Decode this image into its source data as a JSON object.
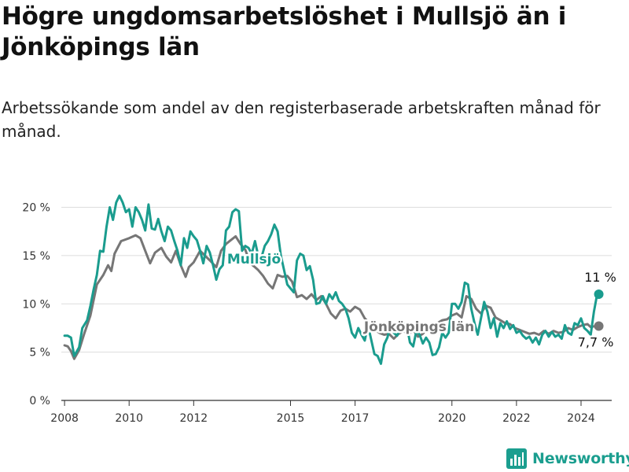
{
  "title": "Högre ungdomsarbetslöshet i Mullsjö än i Jönköpings län",
  "subtitle": "Arbetssökande som andel av den registerbaserade arbetskraften månad för månad.",
  "brand": {
    "name": "Newsworthy",
    "icon": "bar-chart-logo-icon"
  },
  "colors": {
    "mullsjo": "#1a9c8e",
    "lan": "#767676",
    "grid": "#dddddd",
    "axis": "#333333"
  },
  "chart_data": {
    "type": "line",
    "title": "Högre ungdomsarbetslöshet i Mullsjö än i Jönköpings län",
    "ylabel": "",
    "xlabel": "",
    "ylim": [
      0,
      22
    ],
    "xlim": [
      2007.9,
      2024.95
    ],
    "yticks": [
      0,
      5,
      10,
      15,
      20
    ],
    "ytick_labels": [
      "0 %",
      "5 %",
      "10 %",
      "15 %",
      "20 %"
    ],
    "xticks": [
      2008,
      2010,
      2012,
      2015,
      2017,
      2020,
      2022,
      2024
    ],
    "xtick_labels": [
      "2008",
      "2010",
      "2012",
      "2015",
      "2017",
      "2020",
      "2022",
      "2024"
    ],
    "series": [
      {
        "name": "Jönköpings län",
        "label": "Jönköpings län",
        "color": "#767676",
        "end_label": "7,7 %",
        "points": [
          [
            2008.0,
            5.7
          ],
          [
            2008.1,
            5.6
          ],
          [
            2008.2,
            5.1
          ],
          [
            2008.3,
            4.3
          ],
          [
            2008.45,
            5.2
          ],
          [
            2008.6,
            6.8
          ],
          [
            2008.8,
            8.8
          ],
          [
            2009.0,
            12.0
          ],
          [
            2009.2,
            13.0
          ],
          [
            2009.35,
            14.0
          ],
          [
            2009.45,
            13.4
          ],
          [
            2009.55,
            15.2
          ],
          [
            2009.75,
            16.5
          ],
          [
            2010.0,
            16.8
          ],
          [
            2010.2,
            17.1
          ],
          [
            2010.35,
            16.8
          ],
          [
            2010.5,
            15.5
          ],
          [
            2010.65,
            14.2
          ],
          [
            2010.8,
            15.3
          ],
          [
            2011.0,
            15.8
          ],
          [
            2011.15,
            14.9
          ],
          [
            2011.3,
            14.3
          ],
          [
            2011.45,
            15.5
          ],
          [
            2011.6,
            14.0
          ],
          [
            2011.75,
            12.8
          ],
          [
            2011.85,
            13.8
          ],
          [
            2012.0,
            14.3
          ],
          [
            2012.2,
            15.5
          ],
          [
            2012.35,
            15.0
          ],
          [
            2012.5,
            14.5
          ],
          [
            2012.7,
            13.8
          ],
          [
            2012.85,
            15.5
          ],
          [
            2013.0,
            16.2
          ],
          [
            2013.15,
            16.6
          ],
          [
            2013.3,
            17.0
          ],
          [
            2013.45,
            16.2
          ],
          [
            2013.6,
            15.6
          ],
          [
            2013.75,
            14.2
          ],
          [
            2013.9,
            13.8
          ],
          [
            2014.0,
            13.5
          ],
          [
            2014.15,
            12.9
          ],
          [
            2014.3,
            12.1
          ],
          [
            2014.45,
            11.6
          ],
          [
            2014.6,
            13.0
          ],
          [
            2014.75,
            12.8
          ],
          [
            2014.9,
            12.9
          ],
          [
            2015.05,
            12.3
          ],
          [
            2015.2,
            10.7
          ],
          [
            2015.35,
            10.9
          ],
          [
            2015.5,
            10.5
          ],
          [
            2015.65,
            11.0
          ],
          [
            2015.8,
            10.4
          ],
          [
            2015.95,
            10.8
          ],
          [
            2016.1,
            10.0
          ],
          [
            2016.25,
            9.0
          ],
          [
            2016.4,
            8.5
          ],
          [
            2016.55,
            9.3
          ],
          [
            2016.7,
            9.5
          ],
          [
            2016.85,
            9.2
          ],
          [
            2017.0,
            9.7
          ],
          [
            2017.15,
            9.4
          ],
          [
            2017.3,
            8.5
          ],
          [
            2017.45,
            8.0
          ],
          [
            2017.6,
            7.4
          ],
          [
            2017.75,
            7.0
          ],
          [
            2017.9,
            6.8
          ],
          [
            2018.05,
            6.9
          ],
          [
            2018.2,
            6.4
          ],
          [
            2018.35,
            6.9
          ],
          [
            2018.5,
            7.2
          ],
          [
            2018.65,
            6.8
          ],
          [
            2018.8,
            7.3
          ],
          [
            2018.95,
            6.6
          ],
          [
            2019.1,
            6.9
          ],
          [
            2019.25,
            7.5
          ],
          [
            2019.4,
            7.2
          ],
          [
            2019.55,
            8.0
          ],
          [
            2019.7,
            8.3
          ],
          [
            2019.85,
            8.4
          ],
          [
            2020.0,
            8.8
          ],
          [
            2020.15,
            9.0
          ],
          [
            2020.3,
            8.6
          ],
          [
            2020.45,
            10.8
          ],
          [
            2020.6,
            10.5
          ],
          [
            2020.75,
            9.5
          ],
          [
            2020.9,
            9.0
          ],
          [
            2021.05,
            9.8
          ],
          [
            2021.2,
            9.6
          ],
          [
            2021.35,
            8.6
          ],
          [
            2021.5,
            8.3
          ],
          [
            2021.65,
            8.0
          ],
          [
            2021.8,
            7.9
          ],
          [
            2021.95,
            7.5
          ],
          [
            2022.1,
            7.3
          ],
          [
            2022.25,
            7.1
          ],
          [
            2022.4,
            6.9
          ],
          [
            2022.55,
            7.0
          ],
          [
            2022.7,
            6.8
          ],
          [
            2022.85,
            7.2
          ],
          [
            2023.0,
            6.9
          ],
          [
            2023.15,
            7.2
          ],
          [
            2023.3,
            7.0
          ],
          [
            2023.45,
            7.1
          ],
          [
            2023.6,
            7.5
          ],
          [
            2023.75,
            7.3
          ],
          [
            2023.9,
            7.6
          ],
          [
            2024.05,
            7.8
          ],
          [
            2024.2,
            7.9
          ],
          [
            2024.3,
            7.6
          ],
          [
            2024.45,
            7.7
          ],
          [
            2024.55,
            7.7
          ]
        ]
      },
      {
        "name": "Mullsjö",
        "label": "Mullsjö",
        "color": "#1a9c8e",
        "end_label": "11 %",
        "points": [
          [
            2008.0,
            6.7
          ],
          [
            2008.1,
            6.7
          ],
          [
            2008.2,
            6.5
          ],
          [
            2008.3,
            4.6
          ],
          [
            2008.45,
            5.5
          ],
          [
            2008.55,
            7.5
          ],
          [
            2008.7,
            8.3
          ],
          [
            2008.8,
            9.8
          ],
          [
            2008.9,
            11.5
          ],
          [
            2009.0,
            13.0
          ],
          [
            2009.1,
            15.5
          ],
          [
            2009.2,
            15.4
          ],
          [
            2009.3,
            18.0
          ],
          [
            2009.4,
            20.0
          ],
          [
            2009.5,
            18.7
          ],
          [
            2009.6,
            20.5
          ],
          [
            2009.7,
            21.2
          ],
          [
            2009.8,
            20.5
          ],
          [
            2009.9,
            19.5
          ],
          [
            2010.0,
            19.8
          ],
          [
            2010.1,
            18.0
          ],
          [
            2010.2,
            20.0
          ],
          [
            2010.3,
            19.5
          ],
          [
            2010.4,
            18.7
          ],
          [
            2010.5,
            17.6
          ],
          [
            2010.6,
            20.3
          ],
          [
            2010.7,
            17.8
          ],
          [
            2010.8,
            17.7
          ],
          [
            2010.9,
            18.8
          ],
          [
            2011.0,
            17.5
          ],
          [
            2011.1,
            16.5
          ],
          [
            2011.2,
            18.0
          ],
          [
            2011.3,
            17.6
          ],
          [
            2011.4,
            16.5
          ],
          [
            2011.5,
            15.5
          ],
          [
            2011.6,
            14.0
          ],
          [
            2011.7,
            16.8
          ],
          [
            2011.8,
            15.8
          ],
          [
            2011.9,
            17.5
          ],
          [
            2012.0,
            17.0
          ],
          [
            2012.1,
            16.6
          ],
          [
            2012.2,
            15.5
          ],
          [
            2012.3,
            14.2
          ],
          [
            2012.4,
            16.0
          ],
          [
            2012.5,
            15.3
          ],
          [
            2012.6,
            14.0
          ],
          [
            2012.7,
            12.5
          ],
          [
            2012.8,
            13.6
          ],
          [
            2012.9,
            14.0
          ],
          [
            2013.0,
            17.6
          ],
          [
            2013.1,
            18.0
          ],
          [
            2013.2,
            19.5
          ],
          [
            2013.3,
            19.8
          ],
          [
            2013.4,
            19.6
          ],
          [
            2013.5,
            15.5
          ],
          [
            2013.6,
            16.0
          ],
          [
            2013.7,
            15.8
          ],
          [
            2013.8,
            15.2
          ],
          [
            2013.9,
            16.5
          ],
          [
            2014.0,
            15.0
          ],
          [
            2014.1,
            14.8
          ],
          [
            2014.2,
            16.0
          ],
          [
            2014.3,
            16.5
          ],
          [
            2014.4,
            17.2
          ],
          [
            2014.5,
            18.2
          ],
          [
            2014.6,
            17.5
          ],
          [
            2014.7,
            15.0
          ],
          [
            2014.8,
            13.5
          ],
          [
            2014.9,
            12.0
          ],
          [
            2015.0,
            11.6
          ],
          [
            2015.1,
            11.2
          ],
          [
            2015.2,
            14.5
          ],
          [
            2015.3,
            15.2
          ],
          [
            2015.4,
            15.0
          ],
          [
            2015.5,
            13.5
          ],
          [
            2015.6,
            13.9
          ],
          [
            2015.7,
            12.5
          ],
          [
            2015.8,
            10.0
          ],
          [
            2015.9,
            10.1
          ],
          [
            2016.0,
            10.8
          ],
          [
            2016.1,
            10.0
          ],
          [
            2016.2,
            11.0
          ],
          [
            2016.3,
            10.5
          ],
          [
            2016.4,
            11.2
          ],
          [
            2016.5,
            10.3
          ],
          [
            2016.6,
            10.0
          ],
          [
            2016.7,
            9.5
          ],
          [
            2016.8,
            8.5
          ],
          [
            2016.9,
            7.0
          ],
          [
            2017.0,
            6.5
          ],
          [
            2017.1,
            7.5
          ],
          [
            2017.2,
            6.8
          ],
          [
            2017.3,
            6.2
          ],
          [
            2017.4,
            7.8
          ],
          [
            2017.5,
            6.3
          ],
          [
            2017.6,
            4.8
          ],
          [
            2017.7,
            4.6
          ],
          [
            2017.8,
            3.8
          ],
          [
            2017.9,
            5.8
          ],
          [
            2018.0,
            6.5
          ],
          [
            2018.1,
            7.8
          ],
          [
            2018.2,
            7.0
          ],
          [
            2018.3,
            6.7
          ],
          [
            2018.4,
            7.5
          ],
          [
            2018.5,
            8.0
          ],
          [
            2018.6,
            7.8
          ],
          [
            2018.7,
            6.0
          ],
          [
            2018.8,
            5.6
          ],
          [
            2018.9,
            7.2
          ],
          [
            2019.0,
            6.8
          ],
          [
            2019.1,
            5.9
          ],
          [
            2019.2,
            6.5
          ],
          [
            2019.3,
            6.0
          ],
          [
            2019.4,
            4.7
          ],
          [
            2019.5,
            4.8
          ],
          [
            2019.6,
            5.5
          ],
          [
            2019.7,
            7.0
          ],
          [
            2019.8,
            6.5
          ],
          [
            2019.9,
            7.0
          ],
          [
            2020.0,
            10.0
          ],
          [
            2020.1,
            10.0
          ],
          [
            2020.2,
            9.5
          ],
          [
            2020.3,
            10.2
          ],
          [
            2020.4,
            12.2
          ],
          [
            2020.5,
            12.0
          ],
          [
            2020.6,
            9.5
          ],
          [
            2020.7,
            8.0
          ],
          [
            2020.8,
            6.8
          ],
          [
            2020.9,
            8.5
          ],
          [
            2021.0,
            10.2
          ],
          [
            2021.1,
            9.2
          ],
          [
            2021.2,
            7.5
          ],
          [
            2021.3,
            8.5
          ],
          [
            2021.4,
            6.6
          ],
          [
            2021.5,
            8.0
          ],
          [
            2021.6,
            7.5
          ],
          [
            2021.7,
            8.2
          ],
          [
            2021.8,
            7.4
          ],
          [
            2021.9,
            7.8
          ],
          [
            2022.0,
            7.0
          ],
          [
            2022.1,
            7.2
          ],
          [
            2022.2,
            6.7
          ],
          [
            2022.3,
            6.4
          ],
          [
            2022.4,
            6.6
          ],
          [
            2022.5,
            6.0
          ],
          [
            2022.6,
            6.5
          ],
          [
            2022.7,
            5.8
          ],
          [
            2022.8,
            6.8
          ],
          [
            2022.9,
            7.2
          ],
          [
            2023.0,
            6.6
          ],
          [
            2023.1,
            7.1
          ],
          [
            2023.2,
            6.6
          ],
          [
            2023.3,
            6.8
          ],
          [
            2023.4,
            6.4
          ],
          [
            2023.5,
            7.8
          ],
          [
            2023.6,
            7.0
          ],
          [
            2023.7,
            6.8
          ],
          [
            2023.8,
            8.0
          ],
          [
            2023.9,
            7.8
          ],
          [
            2024.0,
            8.5
          ],
          [
            2024.1,
            7.5
          ],
          [
            2024.2,
            7.2
          ],
          [
            2024.3,
            6.8
          ],
          [
            2024.4,
            9.2
          ],
          [
            2024.5,
            11.0
          ],
          [
            2024.55,
            11.0
          ]
        ]
      }
    ]
  }
}
